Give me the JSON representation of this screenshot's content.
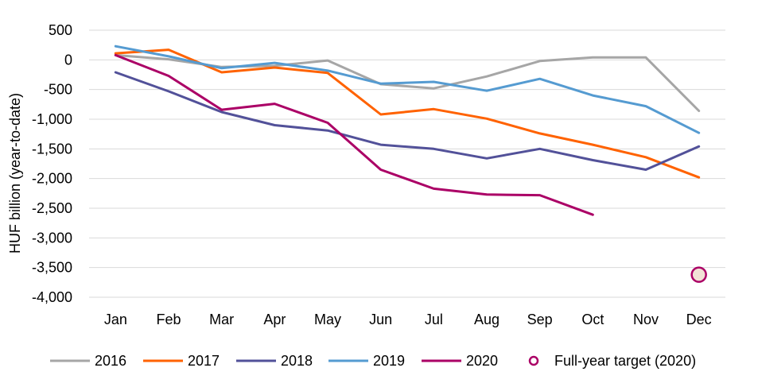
{
  "chart_data": {
    "type": "line",
    "title": "",
    "xlabel": "",
    "ylabel": "HUF billion (year-to-date)",
    "categories": [
      "Jan",
      "Feb",
      "Mar",
      "Apr",
      "May",
      "Jun",
      "Jul",
      "Aug",
      "Sep",
      "Oct",
      "Nov",
      "Dec"
    ],
    "ylim": [
      -4000,
      500
    ],
    "yticks": [
      500,
      0,
      -500,
      -1000,
      -1500,
      -2000,
      -2500,
      -3000,
      -3500,
      -4000
    ],
    "ytick_labels": [
      "500",
      "0",
      "-500",
      "-1,000",
      "-1,500",
      "-2,000",
      "-2,500",
      "-3,000",
      "-3,500",
      "-4,000"
    ],
    "grid": "horizontal",
    "legend_position": "bottom",
    "series": [
      {
        "name": "2016",
        "color": "#a6a6a6",
        "values": [
          80,
          10,
          -120,
          -100,
          -10,
          -410,
          -480,
          -280,
          -20,
          40,
          40,
          -860
        ]
      },
      {
        "name": "2017",
        "color": "#ff6200",
        "values": [
          110,
          170,
          -210,
          -130,
          -220,
          -920,
          -830,
          -990,
          -1240,
          -1430,
          -1640,
          -1980
        ]
      },
      {
        "name": "2018",
        "color": "#525199",
        "values": [
          -210,
          -530,
          -880,
          -1100,
          -1190,
          -1430,
          -1500,
          -1660,
          -1500,
          -1690,
          -1850,
          -1460
        ]
      },
      {
        "name": "2019",
        "color": "#559bd1",
        "values": [
          230,
          60,
          -140,
          -50,
          -180,
          -400,
          -370,
          -520,
          -320,
          -600,
          -780,
          -1230
        ]
      },
      {
        "name": "2020",
        "color": "#ab0066",
        "values": [
          80,
          -270,
          -840,
          -740,
          -1060,
          -1850,
          -2170,
          -2270,
          -2280,
          -2610,
          null,
          null
        ]
      }
    ],
    "target": {
      "name": "Full-year target (2020)",
      "category": "Dec",
      "value": -3620,
      "color": "#ab0066",
      "fill": "#f2e2d6"
    }
  }
}
